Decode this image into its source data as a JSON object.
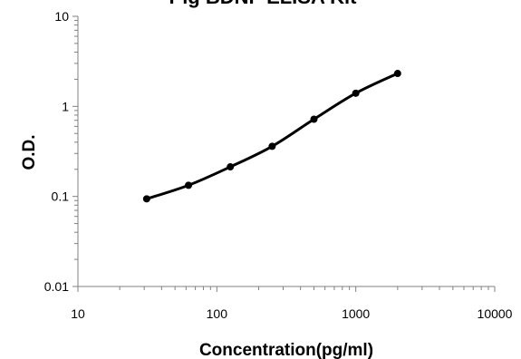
{
  "chart_data": {
    "type": "line",
    "title": "Pig BDNF ELISA Kit",
    "xlabel": "Concentration(pg/ml)",
    "ylabel": "O.D.",
    "x_scale": "log",
    "y_scale": "log",
    "xlim": [
      10,
      10000
    ],
    "ylim": [
      0.01,
      10
    ],
    "x_ticks": [
      "10",
      "100",
      "1000",
      "10000"
    ],
    "y_ticks": [
      "0.01",
      "0.1",
      "1",
      "10"
    ],
    "grid": false,
    "legend": "none",
    "series": [
      {
        "x": [
          31.25,
          62.5,
          125,
          250,
          500,
          1000,
          2000
        ],
        "y": [
          0.094,
          0.133,
          0.213,
          0.36,
          0.72,
          1.4,
          2.32
        ],
        "color": "#000000",
        "marker": "circle",
        "line": "smooth"
      }
    ]
  }
}
